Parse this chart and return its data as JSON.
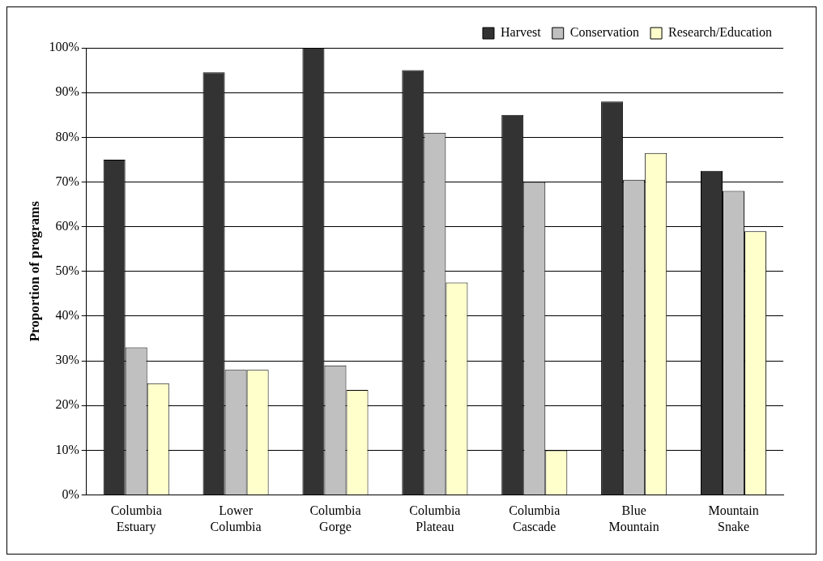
{
  "chart_data": {
    "type": "bar",
    "ylabel": "Proportion of programs",
    "categories": [
      "Columbia Estuary",
      "Lower Columbia",
      "Columbia Gorge",
      "Columbia Plateau",
      "Columbia Cascade",
      "Blue Mountain",
      "Mountain Snake"
    ],
    "series": [
      {
        "name": "Harvest",
        "color": "#333333",
        "values": [
          75,
          94.5,
          100,
          95,
          85,
          88,
          72.5
        ]
      },
      {
        "name": "Conservation",
        "color": "#c0c0c0",
        "values": [
          33,
          28,
          29,
          81,
          70,
          70.5,
          68
        ]
      },
      {
        "name": "Research/Education",
        "color": "#ffffcc",
        "values": [
          25,
          28,
          23.5,
          47.5,
          10,
          76.5,
          59
        ]
      }
    ],
    "ylim": [
      0,
      100
    ],
    "yticks": [
      {
        "value": 0,
        "label": "0%"
      },
      {
        "value": 10,
        "label": "10%"
      },
      {
        "value": 20,
        "label": "20%"
      },
      {
        "value": 30,
        "label": "30%"
      },
      {
        "value": 40,
        "label": "40%"
      },
      {
        "value": 50,
        "label": "50%"
      },
      {
        "value": 60,
        "label": "60%"
      },
      {
        "value": 70,
        "label": "70%"
      },
      {
        "value": 80,
        "label": "80%"
      },
      {
        "value": 90,
        "label": "90%"
      },
      {
        "value": 100,
        "label": "100%"
      }
    ],
    "grid": "y",
    "legend": "top right"
  }
}
